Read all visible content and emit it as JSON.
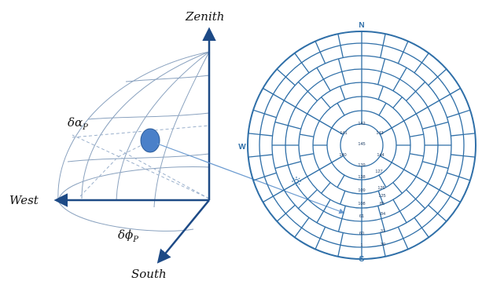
{
  "colors": {
    "axis": "#1d4a86",
    "sphere_line": "#8aa2bf",
    "sphere_dash": "#9ab0cc",
    "sky_grid": "#2f6fa8",
    "sun_patch": "#4a80c9",
    "compass_text": "#2f6fa8",
    "pointer": "#6a9ad0"
  },
  "hemisphere": {
    "zenith_label": "Zenith",
    "west_label": "West",
    "south_label": "South",
    "delta_alpha_label": "δα",
    "delta_alpha_sub": "P",
    "delta_phi_label": "δϕ",
    "delta_phi_sub": "P"
  },
  "skymap": {
    "north_label": "N",
    "south_label": "S",
    "west_label": "W",
    "sun_icon": "sun-icon",
    "cell_numbers": [
      {
        "text": "142"
      },
      {
        "text": "141"
      },
      {
        "text": "143"
      },
      {
        "text": "145"
      },
      {
        "text": "140"
      },
      {
        "text": "144"
      },
      {
        "text": "139"
      },
      {
        "text": "127"
      },
      {
        "text": "138"
      },
      {
        "text": "126"
      },
      {
        "text": "109"
      },
      {
        "text": "125"
      },
      {
        "text": "108"
      },
      {
        "text": "85"
      },
      {
        "text": "61"
      },
      {
        "text": "84"
      },
      {
        "text": "60"
      },
      {
        "text": "31"
      },
      {
        "text": "1"
      },
      {
        "text": "30"
      }
    ]
  }
}
